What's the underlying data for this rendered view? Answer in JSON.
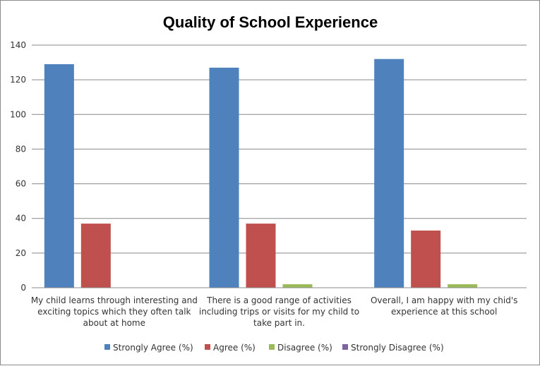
{
  "chart_data": {
    "type": "bar",
    "title": "Quality of School Experience",
    "xlabel": "",
    "ylabel": "",
    "ylim": [
      0,
      140
    ],
    "yticks": [
      0,
      20,
      40,
      60,
      80,
      100,
      120,
      140
    ],
    "grid": true,
    "legend_position": "bottom",
    "categories": [
      [
        "My child learns through interesting and",
        "exciting topics which they often talk",
        "about at home"
      ],
      [
        "There is a good range of activities",
        "including trips or visits for my child to",
        "take part in."
      ],
      [
        "Overall, I am happy with my chid's",
        "experience at this school"
      ]
    ],
    "series": [
      {
        "name": "Strongly Agree (%)",
        "color": "#4f81bd",
        "values": [
          129,
          127,
          132
        ]
      },
      {
        "name": "Agree (%)",
        "color": "#c0504d",
        "values": [
          37,
          37,
          33
        ]
      },
      {
        "name": "Disagree (%)",
        "color": "#9bbb59",
        "values": [
          0,
          2,
          2
        ]
      },
      {
        "name": "Strongly Disagree (%)",
        "color": "#8064a2",
        "values": [
          0,
          0,
          0
        ]
      }
    ]
  }
}
